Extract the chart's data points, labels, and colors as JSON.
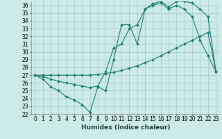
{
  "xlabel": "Humidex (Indice chaleur)",
  "ylabel": "",
  "xlim": [
    -0.5,
    23.5
  ],
  "ylim": [
    22,
    36.5
  ],
  "background_color": "#cceae7",
  "grid_color": "#aacfcc",
  "line_color": "#1a7870",
  "line1_x": [
    0,
    1,
    2,
    3,
    4,
    5,
    6,
    7,
    8,
    9,
    10,
    11,
    12,
    13,
    14,
    15,
    16,
    17,
    18,
    19,
    20,
    21,
    22,
    23
  ],
  "line1_y": [
    27.0,
    26.5,
    25.5,
    25.0,
    24.2,
    23.8,
    23.2,
    22.2,
    25.5,
    25.0,
    29.0,
    33.5,
    33.5,
    31.0,
    35.5,
    36.0,
    36.3,
    35.5,
    36.0,
    35.5,
    34.5,
    31.5,
    29.5,
    27.5
  ],
  "line2_x": [
    0,
    1,
    2,
    3,
    4,
    5,
    6,
    7,
    8,
    9,
    10,
    11,
    12,
    13,
    14,
    15,
    16,
    17,
    18,
    19,
    20,
    21,
    22,
    23
  ],
  "line2_y": [
    27.0,
    26.8,
    26.5,
    26.2,
    26.0,
    25.8,
    25.6,
    25.4,
    25.6,
    27.5,
    30.5,
    31.0,
    33.0,
    33.5,
    35.5,
    36.2,
    36.5,
    35.8,
    36.5,
    36.5,
    36.3,
    35.5,
    34.5,
    27.5
  ],
  "line3_x": [
    0,
    1,
    2,
    3,
    4,
    5,
    6,
    7,
    8,
    9,
    10,
    11,
    12,
    13,
    14,
    15,
    16,
    17,
    18,
    19,
    20,
    21,
    22,
    23
  ],
  "line3_y": [
    27.0,
    27.0,
    27.0,
    27.0,
    27.0,
    27.0,
    27.0,
    27.0,
    27.1,
    27.2,
    27.4,
    27.6,
    27.9,
    28.2,
    28.6,
    29.0,
    29.5,
    30.0,
    30.5,
    31.0,
    31.5,
    32.0,
    32.5,
    27.5
  ],
  "xticks": [
    0,
    1,
    2,
    3,
    4,
    5,
    6,
    7,
    8,
    9,
    10,
    11,
    12,
    13,
    14,
    15,
    16,
    17,
    18,
    19,
    20,
    21,
    22,
    23
  ],
  "yticks": [
    22,
    23,
    24,
    25,
    26,
    27,
    28,
    29,
    30,
    31,
    32,
    33,
    34,
    35,
    36
  ],
  "markersize": 2.0,
  "linewidth": 0.8,
  "fontsize_ticks": 5.5,
  "fontsize_xlabel": 6.5
}
